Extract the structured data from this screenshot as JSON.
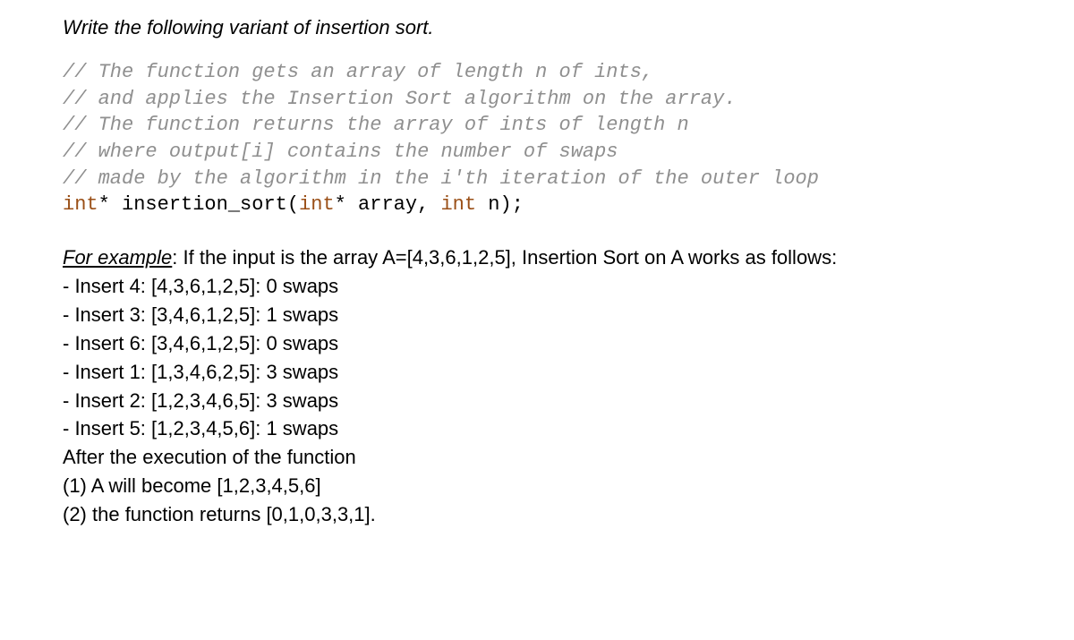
{
  "title": "Write the following variant of insertion sort.",
  "code": {
    "comments": [
      "// The function gets an array of length n of ints,",
      "// and applies the Insertion Sort algorithm on the array.",
      "// The function returns the array of ints of length n",
      "// where output[i] contains the number of swaps",
      "// made by the algorithm in the i'th iteration of the outer loop"
    ],
    "decl_kw1": "int",
    "decl_mid1": "* insertion_sort(",
    "decl_kw2": "int",
    "decl_mid2": "* array, ",
    "decl_kw3": "int",
    "decl_end": " n);"
  },
  "example": {
    "label": "For example",
    "intro_rest": ": If the input is the array A=[4,3,6,1,2,5], Insertion Sort on A works as follows:",
    "steps": [
      "- Insert 4: [4,3,6,1,2,5]: 0 swaps",
      "- Insert 3: [3,4,6,1,2,5]: 1 swaps",
      "- Insert 6: [3,4,6,1,2,5]: 0 swaps",
      "- Insert 1: [1,3,4,6,2,5]: 3 swaps",
      "- Insert 2: [1,2,3,4,6,5]: 3 swaps",
      "- Insert 5: [1,2,3,4,5,6]: 1 swaps"
    ],
    "after1": "After the execution of the function",
    "after2": "(1) A will become [1,2,3,4,5,6]",
    "after3": "(2) the function returns [0,1,0,3,3,1]."
  }
}
